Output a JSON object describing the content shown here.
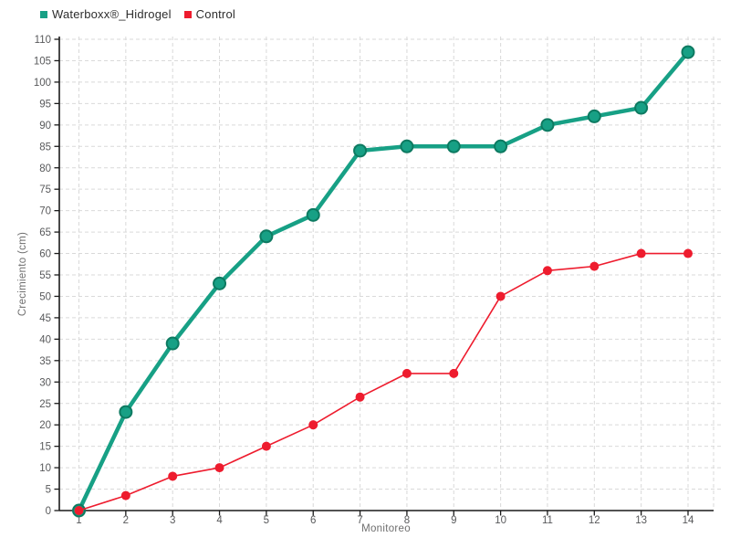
{
  "chart_data": {
    "type": "line",
    "title": "",
    "xlabel": "Monitoreo",
    "ylabel": "Crecimiento (cm)",
    "x": [
      1,
      2,
      3,
      4,
      5,
      6,
      7,
      8,
      9,
      10,
      11,
      12,
      13,
      14
    ],
    "series": [
      {
        "name": "Waterboxx®_Hidrogel",
        "color": "#17a085",
        "marker_edge_color": "#0d7a61",
        "values": [
          0,
          23,
          39,
          53,
          64,
          69,
          84,
          85,
          85,
          85,
          90,
          92,
          94,
          107
        ]
      },
      {
        "name": "Control",
        "color": "#ee1c2e",
        "marker_edge_color": "#d8121f",
        "values": [
          0,
          3.5,
          8,
          10,
          15,
          20,
          26.5,
          32,
          32,
          50,
          56,
          57,
          60,
          60
        ]
      }
    ],
    "ylim": [
      0,
      110
    ],
    "y_ticks": [
      0,
      5,
      10,
      15,
      20,
      25,
      30,
      35,
      40,
      45,
      50,
      55,
      60,
      65,
      70,
      75,
      80,
      85,
      90,
      95,
      100,
      105,
      110
    ],
    "x_ticks": [
      1,
      2,
      3,
      4,
      5,
      6,
      7,
      8,
      9,
      10,
      11,
      12,
      13,
      14
    ],
    "grid": true,
    "grid_style": "dashed",
    "grid_color": "#d9d9d9",
    "axis_color": "#1a1a1a",
    "tick_label_color": "#58595b",
    "legend_position": "top-left"
  }
}
